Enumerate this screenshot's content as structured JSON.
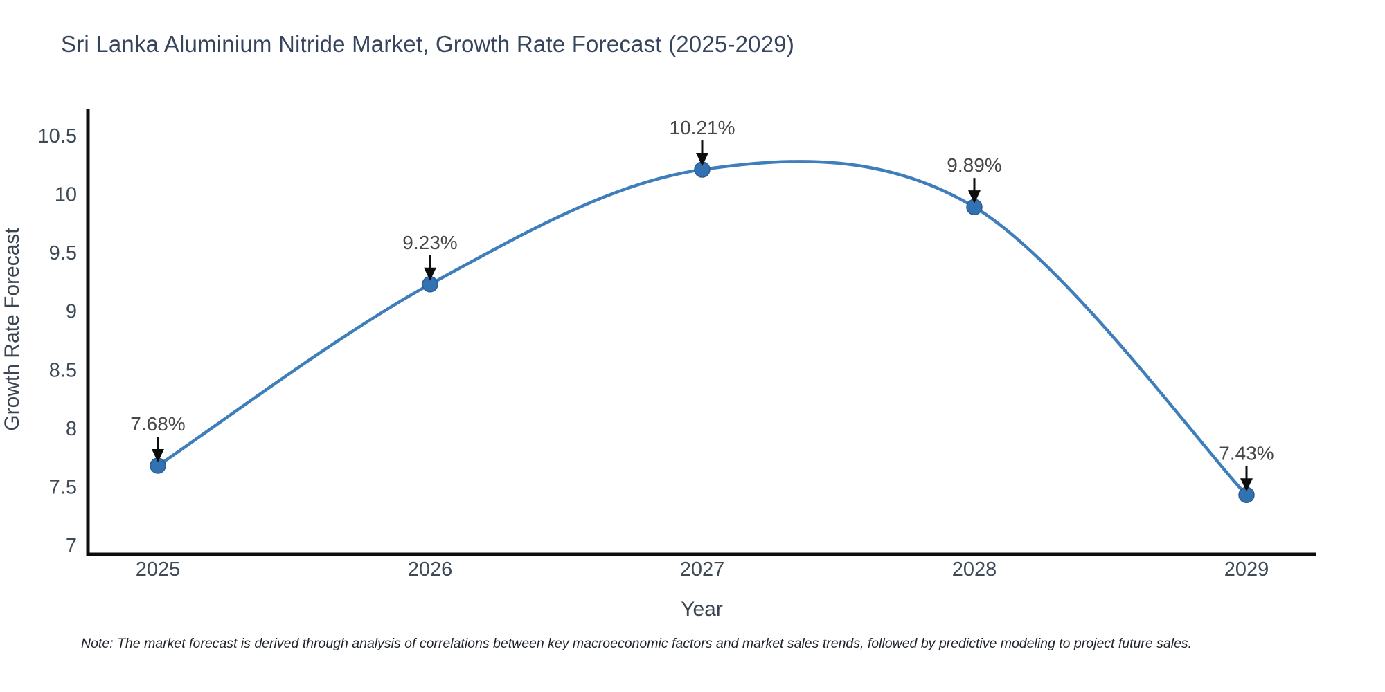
{
  "page": {
    "title": "Sri Lanka Aluminium Nitride Market, Growth Rate Forecast (2025-2029)",
    "note": "Note: The market forecast is derived through analysis of correlations between key macroeconomic factors and market sales trends, followed by predictive modeling to project future sales."
  },
  "colors": {
    "background": "#ffffff",
    "title_text": "#36455c",
    "axis_line": "#0d0d0d",
    "tick_label": "#3f4a57",
    "axis_title": "#3b4552",
    "series_line": "#3d7ebb",
    "marker_fill": "#3372b1",
    "marker_stroke": "#2a5d94",
    "annotation_text": "#474747",
    "annotation_arrow": "#0d0d0d",
    "note_text": "#1f242b"
  },
  "chart_data": {
    "type": "line",
    "title": "Sri Lanka Aluminium Nitride Market, Growth Rate Forecast (2025-2029)",
    "xlabel": "Year",
    "ylabel": "Growth Rate Forecast",
    "x": [
      2025,
      2026,
      2027,
      2028,
      2029
    ],
    "x_tick_labels": [
      "2025",
      "2026",
      "2027",
      "2028",
      "2029"
    ],
    "series": [
      {
        "name": "Growth Rate Forecast",
        "values": [
          7.68,
          9.23,
          10.21,
          9.89,
          7.43
        ],
        "point_labels": [
          "7.68%",
          "9.23%",
          "10.21%",
          "9.89%",
          "7.43%"
        ]
      }
    ],
    "y_ticks": [
      7,
      7.5,
      8,
      8.5,
      9,
      9.5,
      10,
      10.5
    ],
    "y_tick_labels": [
      "7",
      "7.5",
      "8",
      "8.5",
      "9",
      "9.5",
      "10",
      "10.5"
    ],
    "ylim": [
      7,
      10.5
    ],
    "xlim": [
      2025,
      2029
    ],
    "line_shape": "spline",
    "grid": false,
    "legend": "none",
    "note": "Note: The market forecast is derived through analysis of correlations between key macroeconomic factors and market sales trends, followed by predictive modeling to project future sales."
  }
}
